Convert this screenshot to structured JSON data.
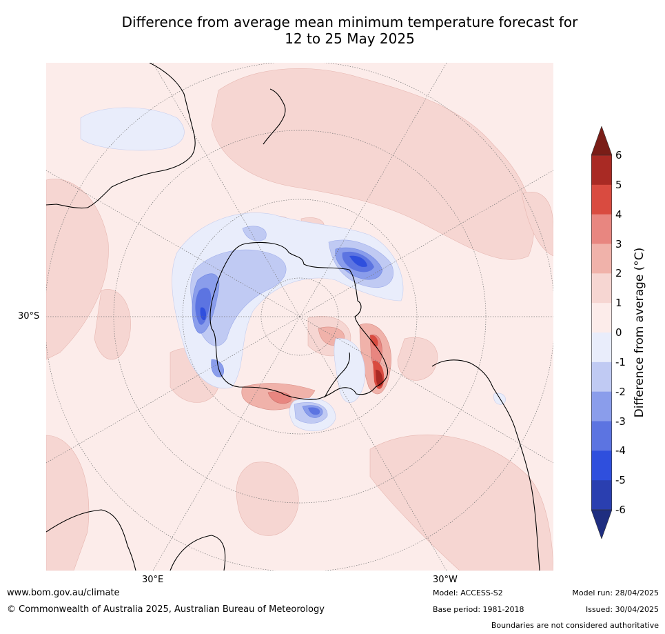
{
  "title_line1": "Difference from average mean minimum temperature forecast for",
  "title_line2": "12 to 25 May 2025",
  "map": {
    "projection": "south-polar stereographic",
    "lat_label": "30°S",
    "lon_labels": [
      "30°E",
      "30°W"
    ]
  },
  "colorbar": {
    "label": "Difference from average (°C)",
    "ticks": [
      "6",
      "5",
      "4",
      "3",
      "2",
      "1",
      "0",
      "-1",
      "-2",
      "-3",
      "-4",
      "-5",
      "-6"
    ],
    "colors": [
      "#a92a24",
      "#d94b40",
      "#e88680",
      "#f0b2aa",
      "#f6d6d2",
      "#fcecea",
      "#e9edfb",
      "#c0caf3",
      "#8a9deb",
      "#5c74e1",
      "#2f4fdd",
      "#2a3fb0"
    ],
    "top_arrow_color": "#7a1d17",
    "bottom_arrow_color": "#1f2e80"
  },
  "footer": {
    "url": "www.bom.gov.au/climate",
    "copyright": "© Commonwealth of Australia 2025, Australian Bureau of Meteorology",
    "model": "Model: ACCESS-S2",
    "base_period": "Base period: 1981-2018",
    "model_run": "Model run: 28/04/2025",
    "issued": "Issued: 30/04/2025",
    "disclaimer": "Boundaries are not considered authoritative"
  }
}
